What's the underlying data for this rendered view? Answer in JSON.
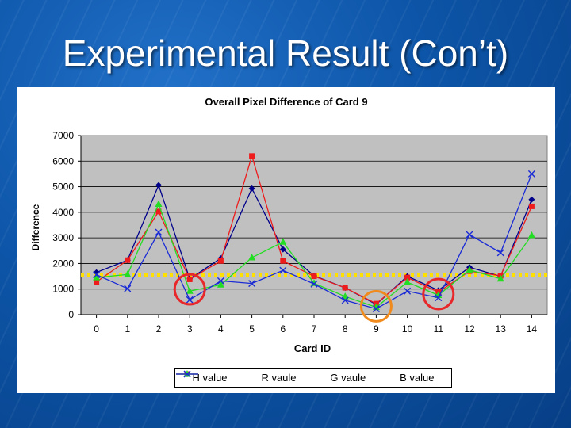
{
  "slide": {
    "title": "Experimental Result (Con’t)"
  },
  "colors": {
    "plot_bg": "#c0c0c0",
    "threshold": "#ffe000",
    "circle_red": "#e8272a",
    "circle_orange": "#f08a1c"
  },
  "chart_data": {
    "type": "line",
    "title": "Overall Pixel Difference of Card 9",
    "xlabel": "Card ID",
    "ylabel": "Difference",
    "x": [
      0,
      1,
      2,
      3,
      4,
      5,
      6,
      7,
      8,
      9,
      10,
      11,
      12,
      13,
      14
    ],
    "ylim": [
      0,
      7000
    ],
    "yticks": [
      0,
      1000,
      2000,
      3000,
      4000,
      5000,
      6000,
      7000
    ],
    "grid": true,
    "legend": "bottom",
    "threshold_value": 1550,
    "highlighted_x": [
      3,
      9,
      11
    ],
    "series": [
      {
        "name": "H value",
        "color": "#00008b",
        "marker": "diamond",
        "values": [
          1650,
          2130,
          5060,
          1400,
          2200,
          4930,
          2550,
          1520,
          1050,
          400,
          1500,
          950,
          1850,
          1500,
          4500
        ]
      },
      {
        "name": "R vaule",
        "color": "#ee1c1c",
        "marker": "square",
        "values": [
          1280,
          2130,
          4030,
          1380,
          2100,
          6200,
          2100,
          1500,
          1050,
          430,
          1450,
          880,
          1700,
          1520,
          4230
        ]
      },
      {
        "name": "G vaule",
        "color": "#22dd22",
        "marker": "triangle",
        "values": [
          1450,
          1570,
          4320,
          920,
          1170,
          2230,
          2840,
          1230,
          710,
          290,
          1270,
          760,
          1750,
          1400,
          3100
        ]
      },
      {
        "name": "B value",
        "color": "#1a2bd6",
        "marker": "x",
        "values": [
          1560,
          1020,
          3220,
          580,
          1320,
          1220,
          1730,
          1200,
          560,
          230,
          920,
          660,
          3130,
          2420,
          5500
        ]
      }
    ]
  }
}
